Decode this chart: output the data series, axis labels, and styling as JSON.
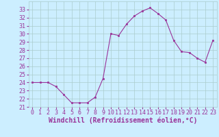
{
  "x": [
    0,
    1,
    2,
    3,
    4,
    5,
    6,
    7,
    8,
    9,
    10,
    11,
    12,
    13,
    14,
    15,
    16,
    17,
    18,
    19,
    20,
    21,
    22,
    23
  ],
  "y": [
    24.0,
    24.0,
    24.0,
    23.5,
    22.5,
    21.5,
    21.5,
    21.5,
    22.2,
    24.5,
    30.0,
    29.8,
    31.2,
    32.2,
    32.8,
    33.2,
    32.5,
    31.7,
    29.2,
    27.8,
    27.7,
    27.0,
    26.5,
    29.2
  ],
  "line_color": "#993399",
  "marker": "s",
  "marker_size": 2,
  "bg_color": "#cceeff",
  "grid_color": "#aacccc",
  "xlabel": "Windchill (Refroidissement éolien,°C)",
  "xlabel_fontsize": 7,
  "tick_fontsize": 6,
  "ylim": [
    21,
    34
  ],
  "yticks": [
    21,
    22,
    23,
    24,
    25,
    26,
    27,
    28,
    29,
    30,
    31,
    32,
    33
  ],
  "xlim": [
    -0.5,
    23.5
  ],
  "xticks": [
    0,
    1,
    2,
    3,
    4,
    5,
    6,
    7,
    8,
    9,
    10,
    11,
    12,
    13,
    14,
    15,
    16,
    17,
    18,
    19,
    20,
    21,
    22,
    23
  ]
}
